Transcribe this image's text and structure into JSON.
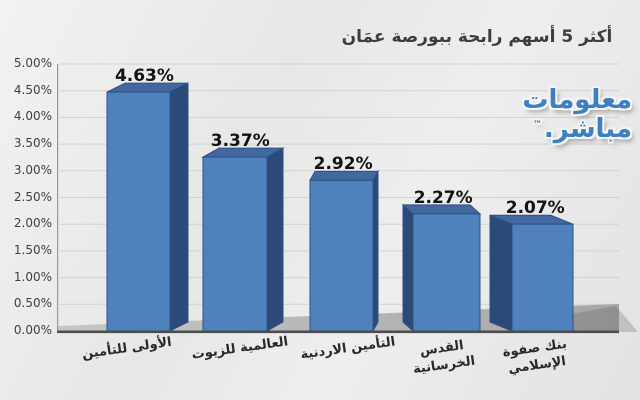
{
  "title": "أكثر 5 أسهم رابحة ببورصة عمَان",
  "watermark": {
    "line1": "معلومات",
    "line2": "مباشر.",
    "mark": "™"
  },
  "chart_data": {
    "type": "bar",
    "style": "3d-column",
    "title": "أكثر 5 أسهم رابحة ببورصة عمَان",
    "categories": [
      "الأولى للتأمين",
      "العالمية للزيوت",
      "التأمين الاردنية",
      "القدس الخرسانية",
      "بنك صفوة الإسلامي"
    ],
    "values": [
      4.63,
      3.37,
      2.92,
      2.27,
      2.07
    ],
    "value_labels": [
      "4.63%",
      "3.37%",
      "2.92%",
      "2.27%",
      "2.07%"
    ],
    "unit": "%",
    "ylim": [
      0,
      5
    ],
    "ytick_step": 0.5,
    "ytick_labels": [
      "5.00%",
      "4.50%",
      "4.00%",
      "3.50%",
      "3.00%",
      "2.50%",
      "2.00%",
      "1.50%",
      "1.00%",
      "0.50%",
      "0.00%"
    ],
    "grid": true,
    "legend": false,
    "colors": {
      "bar_front": "#4f81bd",
      "bar_side": "#2c4a78",
      "bar_top": "#41699f",
      "bar_edge": "#2d5186",
      "grid": "#d2d2d2",
      "axis": "#4d4d4d",
      "floor": "#b3b3b3",
      "value_label": "#121212",
      "title": "#3d3d3d",
      "watermark_blue": "#3c80c2"
    }
  }
}
